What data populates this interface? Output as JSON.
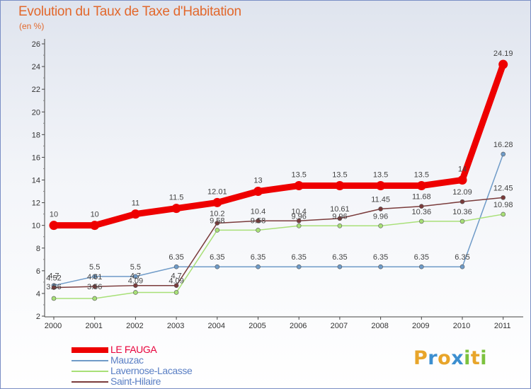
{
  "header": {
    "title": "Evolution du Taux de Taxe d'Habitation",
    "subtitle": "(en %)"
  },
  "brand": {
    "letters": [
      {
        "char": "P",
        "color": "#e8a52a"
      },
      {
        "char": "r",
        "color": "#3c8fd0"
      },
      {
        "char": "o",
        "color": "#e8a52a"
      },
      {
        "char": "x",
        "color": "#3c8fd0"
      },
      {
        "char": "i",
        "color": "#7cc23e"
      },
      {
        "char": "t",
        "color": "#e8a52a"
      },
      {
        "char": "i",
        "color": "#7cc23e"
      }
    ]
  },
  "chart_data": {
    "type": "line",
    "x": [
      "2000",
      "2001",
      "2002",
      "2003",
      "2004",
      "2005",
      "2006",
      "2007",
      "2008",
      "2009",
      "2010",
      "2011"
    ],
    "ylim": [
      2,
      26
    ],
    "yticks": [
      "2",
      "4",
      "6",
      "8",
      "10",
      "12",
      "14",
      "16",
      "18",
      "20",
      "22",
      "24",
      "26"
    ],
    "grid": false,
    "legend_position": "bottom-left",
    "series": [
      {
        "name": "LE FAUGA",
        "color": "#ee0000",
        "values": [
          10,
          10,
          11,
          11.5,
          12.01,
          13,
          13.5,
          13.5,
          13.5,
          13.5,
          14,
          24.19
        ],
        "labels": [
          "10",
          "10",
          "11",
          "11.5",
          "12.01",
          "13",
          "13.5",
          "13.5",
          "13.5",
          "13.5",
          "14",
          "24.19"
        ]
      },
      {
        "name": "Mauzac",
        "color": "#6f9bc8",
        "values": [
          4.7,
          5.5,
          5.5,
          6.35,
          6.35,
          6.35,
          6.35,
          6.35,
          6.35,
          6.35,
          6.35,
          16.28
        ],
        "labels": [
          "4.7",
          "5.5",
          "5.5",
          "6.35",
          "6.35",
          "6.35",
          "6.35",
          "6.35",
          "6.35",
          "6.35",
          "6.35",
          "16.28"
        ]
      },
      {
        "name": "Lavernose-Lacasse",
        "color": "#a8e077",
        "values": [
          3.56,
          3.56,
          4.09,
          4.09,
          9.58,
          9.58,
          9.96,
          9.96,
          9.96,
          10.36,
          10.36,
          10.98
        ],
        "labels": [
          "3.56",
          "3.56",
          "4.09",
          "4.09",
          "9.58",
          "9.58",
          "9.96",
          "9.96",
          "9.96",
          "10.36",
          "10.36",
          "10.98"
        ]
      },
      {
        "name": "Saint-Hilaire",
        "color": "#7a3b3b",
        "values": [
          4.52,
          4.61,
          4.7,
          4.7,
          10.2,
          10.4,
          10.4,
          10.61,
          11.45,
          11.68,
          12.09,
          12.45
        ],
        "labels": [
          "4.52",
          "4.61",
          "4.7",
          "4.7",
          "10.2",
          "10.4",
          "10.4",
          "10.61",
          "11.45",
          "11.68",
          "12.09",
          "12.45"
        ]
      }
    ]
  }
}
